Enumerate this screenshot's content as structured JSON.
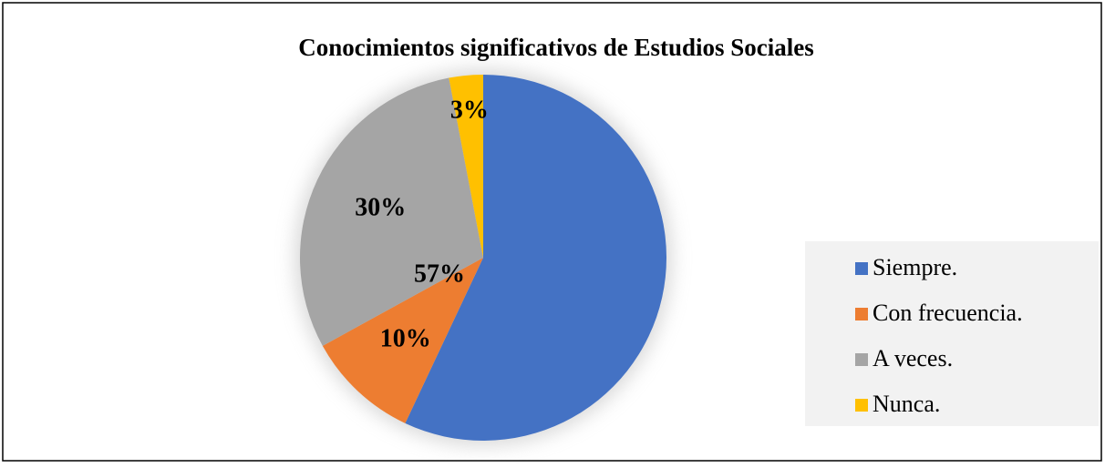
{
  "chart_data": {
    "type": "pie",
    "title": "Conocimientos significativos de Estudios Sociales",
    "categories": [
      "Siempre.",
      "Con frecuencia.",
      "A veces.",
      "Nunca."
    ],
    "values": [
      57,
      10,
      30,
      3
    ],
    "value_labels": [
      "57%",
      "10%",
      "30%",
      "3%"
    ],
    "colors": [
      "#4472c4",
      "#ed7d31",
      "#a5a5a5",
      "#ffc000"
    ],
    "legend": "right"
  }
}
